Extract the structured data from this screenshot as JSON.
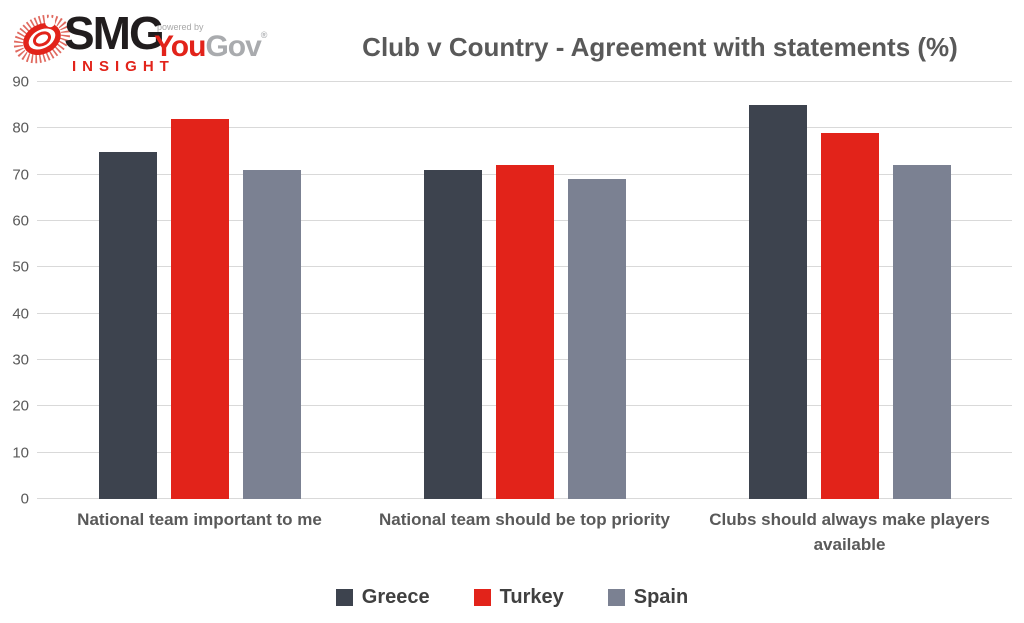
{
  "logo": {
    "smg": "SMG",
    "insight": "INSIGHT",
    "powered_by": "powered by",
    "you": "You",
    "gov": "Gov",
    "registered_mark": "®"
  },
  "title": "Club v Country - Agreement with statements (%)",
  "colors": {
    "greece": "#3d434e",
    "turkey": "#e2231a",
    "spain": "#7b8192",
    "gridline": "#d9d9d9",
    "axis_text": "#595959",
    "legend_text": "#404040",
    "brand_red": "#e2231a",
    "brand_gray": "#a9abae"
  },
  "chart_data": {
    "type": "bar",
    "categories": [
      "National team important to me",
      "National team should be top priority",
      "Clubs should always make players available"
    ],
    "series": [
      {
        "name": "Greece",
        "color": "#3d434e",
        "values": [
          75,
          71,
          85
        ]
      },
      {
        "name": "Turkey",
        "color": "#e2231a",
        "values": [
          82,
          72,
          79
        ]
      },
      {
        "name": "Spain",
        "color": "#7b8192",
        "values": [
          71,
          69,
          72
        ]
      }
    ],
    "title": "Club v Country - Agreement with statements (%)",
    "xlabel": "",
    "ylabel": "",
    "ylim": [
      0,
      90
    ],
    "ytick_interval": 10,
    "grid": true,
    "legend_position": "bottom"
  }
}
